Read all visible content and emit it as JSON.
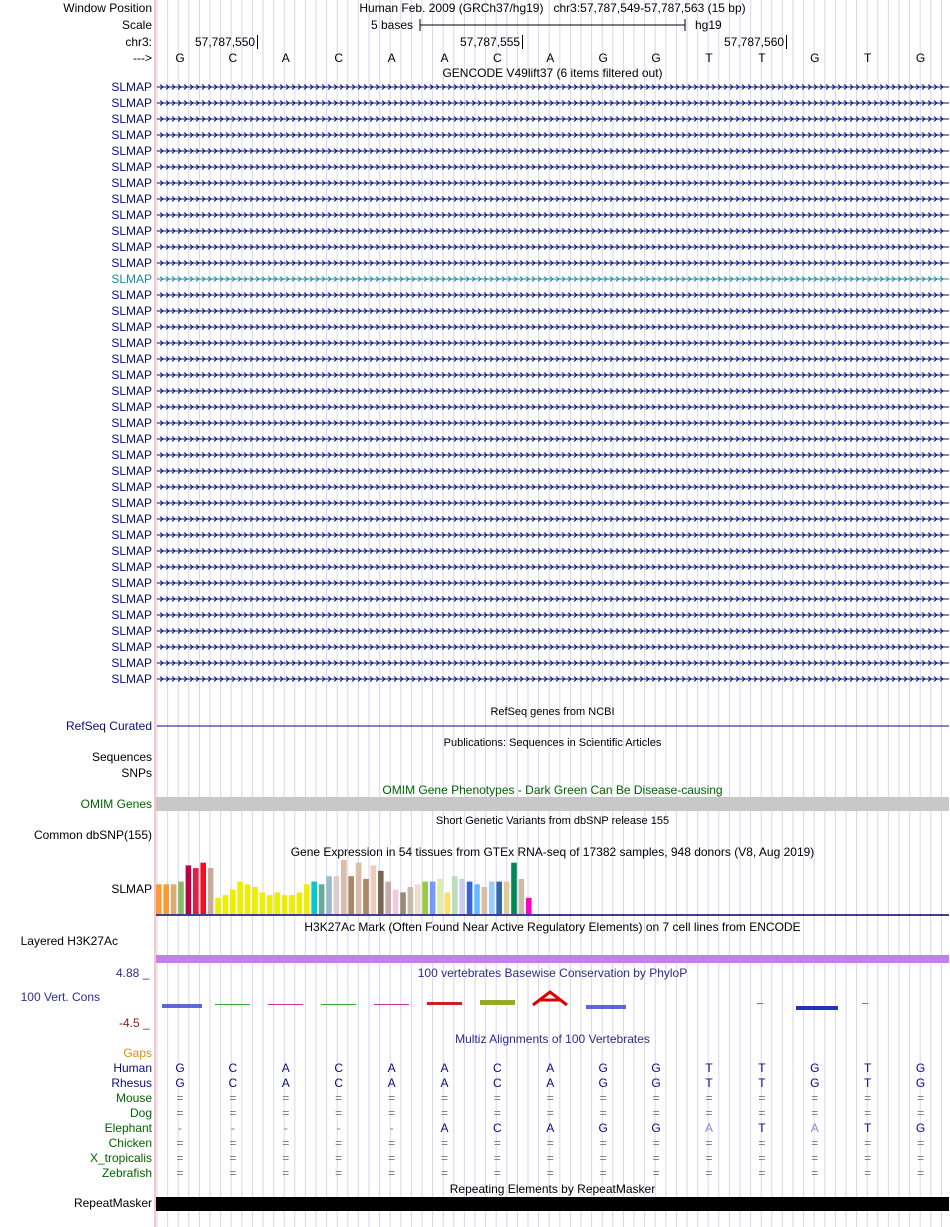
{
  "header": {
    "window_position_label": "Window Position",
    "title": "Human Feb. 2009 (GRCh37/hg19)   chr3:57,787,549-57,787,563 (15 bp)",
    "scale_label": "Scale",
    "scale_text": "5 bases",
    "assembly": "hg19",
    "chrom_label": "chr3:",
    "strand_label": "--->",
    "ticks": [
      "57,787,550",
      "57,787,555",
      "57,787,560"
    ],
    "bases": [
      "G",
      "C",
      "A",
      "C",
      "A",
      "A",
      "C",
      "A",
      "G",
      "G",
      "T",
      "T",
      "G",
      "T",
      "G"
    ]
  },
  "gencode": {
    "title": "GENCODE V49lift37 (6 items filtered out)",
    "gene_labels": [
      "SLMAP",
      "SLMAP",
      "SLMAP",
      "SLMAP",
      "SLMAP",
      "SLMAP",
      "SLMAP",
      "SLMAP",
      "SLMAP",
      "SLMAP",
      "SLMAP",
      "SLMAP",
      "SLMAP",
      "SLMAP",
      "SLMAP",
      "SLMAP",
      "SLMAP",
      "SLMAP",
      "SLMAP",
      "SLMAP",
      "SLMAP",
      "SLMAP",
      "SLMAP",
      "SLMAP",
      "SLMAP",
      "SLMAP",
      "SLMAP",
      "SLMAP",
      "SLMAP",
      "SLMAP",
      "SLMAP",
      "SLMAP",
      "SLMAP",
      "SLMAP",
      "SLMAP",
      "SLMAP",
      "SLMAP",
      "SLMAP"
    ]
  },
  "refseq": {
    "title": "RefSeq genes from NCBI",
    "label": "RefSeq Curated"
  },
  "publications": {
    "title": "Publications: Sequences in Scientific Articles",
    "label1": "Sequences",
    "label2": "SNPs"
  },
  "omim": {
    "title": "OMIM Gene Phenotypes - Dark Green Can Be Disease-causing",
    "label": "OMIM Genes"
  },
  "dbsnp": {
    "title": "Short Genetic Variants from dbSNP release 155",
    "label": "Common dbSNP(155)"
  },
  "gtex": {
    "title": "Gene Expression in 54 tissues from GTEx RNA-seq of 17382 samples, 948 donors (V8, Aug 2019)",
    "label": "SLMAP",
    "levels": [
      0.55,
      0.55,
      0.55,
      0.6,
      0.9,
      0.85,
      0.95,
      0.85,
      0.3,
      0.35,
      0.45,
      0.6,
      0.55,
      0.5,
      0.4,
      0.35,
      0.4,
      0.35,
      0.35,
      0.4,
      0.55,
      0.6,
      0.55,
      0.7,
      0.7,
      1.0,
      0.7,
      0.95,
      0.65,
      0.9,
      0.8,
      0.6,
      0.45,
      0.4,
      0.5,
      0.55,
      0.6,
      0.6,
      0.65,
      0.4,
      0.7,
      0.65,
      0.6,
      0.55,
      0.5,
      0.6,
      0.6,
      0.6,
      0.95,
      0.65,
      0.3
    ],
    "colors": [
      "#ff9933",
      "#ff9933",
      "#ddaa77",
      "#88bb66",
      "#bb0044",
      "#dd2244",
      "#ee1122",
      "#ccaa99",
      "#eeee00",
      "#eeee00",
      "#eeee00",
      "#eeee00",
      "#eeee00",
      "#eeee00",
      "#eeee00",
      "#eeee00",
      "#eeee00",
      "#eeee00",
      "#eeee00",
      "#eeee00",
      "#eeee00",
      "#00cccc",
      "#66aa99",
      "#99bbcc",
      "#ddcccc",
      "#ddbbaa",
      "#aa8866",
      "#ddbbaa",
      "#aa8866",
      "#eeccbb",
      "#776655",
      "#ccaaaa",
      "#eeccdd",
      "#998877",
      "#ccbbaa",
      "#eeddcc",
      "#99cc44",
      "#7799ff",
      "#ddeeaa",
      "#ffdd66",
      "#bbddbb",
      "#ccccee",
      "#3366dd",
      "#66bbff",
      "#ddbbaa",
      "#99ccff",
      "#3366aa",
      "#ddcc99",
      "#008855",
      "#ccbbaa",
      "#ff00cc"
    ]
  },
  "h3k27ac": {
    "title": "H3K27Ac Mark (Often Found Near Active Regulatory Elements) on 7 cell lines from ENCODE",
    "label": "Layered H3K27Ac"
  },
  "conservation": {
    "title": "100 vertebrates Basewise Conservation by PhyloP",
    "label": "100 Vert. Cons",
    "max": "4.88 _",
    "min": "-4.5 _"
  },
  "multiz": {
    "title": "Multiz Alignments of 100 Vertebrates",
    "gaps_label": "Gaps",
    "species": [
      {
        "name": "Human",
        "bases": [
          "G",
          "C",
          "A",
          "C",
          "A",
          "A",
          "C",
          "A",
          "G",
          "G",
          "T",
          "T",
          "G",
          "T",
          "G"
        ]
      },
      {
        "name": "Rhesus",
        "bases": [
          "G",
          "C",
          "A",
          "C",
          "A",
          "A",
          "C",
          "A",
          "G",
          "G",
          "T",
          "T",
          "G",
          "T",
          "G"
        ]
      },
      {
        "name": "Mouse",
        "bases": [
          "=",
          "=",
          "=",
          "=",
          "=",
          "=",
          "=",
          "=",
          "=",
          "=",
          "=",
          "=",
          "=",
          "=",
          "="
        ]
      },
      {
        "name": "Dog",
        "bases": [
          "=",
          "=",
          "=",
          "=",
          "=",
          "=",
          "=",
          "=",
          "=",
          "=",
          "=",
          "=",
          "=",
          "=",
          "="
        ]
      },
      {
        "name": "Elephant",
        "bases": [
          "-",
          "-",
          "-",
          "-",
          "-",
          "A",
          "C",
          "A",
          "G",
          "G",
          "A",
          "T",
          "A",
          "T",
          "G"
        ]
      },
      {
        "name": "Chicken",
        "bases": [
          "=",
          "=",
          "=",
          "=",
          "=",
          "=",
          "=",
          "=",
          "=",
          "=",
          "=",
          "=",
          "=",
          "=",
          "="
        ]
      },
      {
        "name": "X_tropicalis",
        "bases": [
          "=",
          "=",
          "=",
          "=",
          "=",
          "=",
          "=",
          "=",
          "=",
          "=",
          "=",
          "=",
          "=",
          "=",
          "="
        ]
      },
      {
        "name": "Zebrafish",
        "bases": [
          "=",
          "=",
          "=",
          "=",
          "=",
          "=",
          "=",
          "=",
          "=",
          "=",
          "=",
          "=",
          "=",
          "=",
          "="
        ]
      }
    ]
  },
  "repeatmasker": {
    "title": "Repeating Elements by RepeatMasker",
    "label": "RepeatMasker"
  }
}
